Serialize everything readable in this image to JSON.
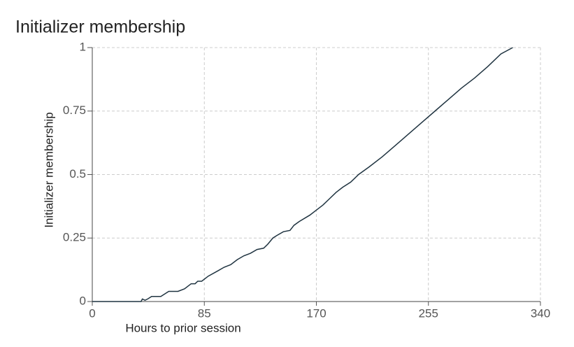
{
  "chart_data": {
    "type": "line",
    "title": "Initializer membership",
    "x_label": "Hours to prior session",
    "y_label": "Initializer membership",
    "series": [
      {
        "color": "#1f3340",
        "x": [
          0,
          37,
          38,
          40,
          42,
          45,
          52,
          55,
          58,
          65,
          70,
          75,
          78,
          80,
          83,
          88,
          95,
          100,
          105,
          110,
          115,
          120,
          125,
          130,
          133,
          137,
          140,
          145,
          150,
          153,
          157,
          165,
          170,
          175,
          180,
          185,
          190,
          196,
          202,
          210,
          220,
          230,
          240,
          250,
          260,
          270,
          280,
          290,
          300,
          310,
          319
        ],
        "values": [
          0,
          0,
          0.01,
          0.005,
          0.01,
          0.02,
          0.02,
          0.03,
          0.04,
          0.04,
          0.05,
          0.07,
          0.07,
          0.08,
          0.08,
          0.1,
          0.12,
          0.135,
          0.145,
          0.165,
          0.18,
          0.19,
          0.205,
          0.21,
          0.225,
          0.25,
          0.26,
          0.275,
          0.28,
          0.3,
          0.315,
          0.34,
          0.36,
          0.38,
          0.405,
          0.43,
          0.45,
          0.47,
          0.5,
          0.53,
          0.57,
          0.615,
          0.66,
          0.705,
          0.75,
          0.795,
          0.84,
          0.88,
          0.925,
          0.975,
          1.0
        ]
      }
    ],
    "xlim": [
      0,
      340
    ],
    "xticks": [
      0,
      85,
      170,
      255,
      340
    ],
    "ylim": [
      0,
      1
    ],
    "yticks": [
      0,
      0.25,
      0.5,
      0.75,
      1
    ],
    "grid": true
  }
}
